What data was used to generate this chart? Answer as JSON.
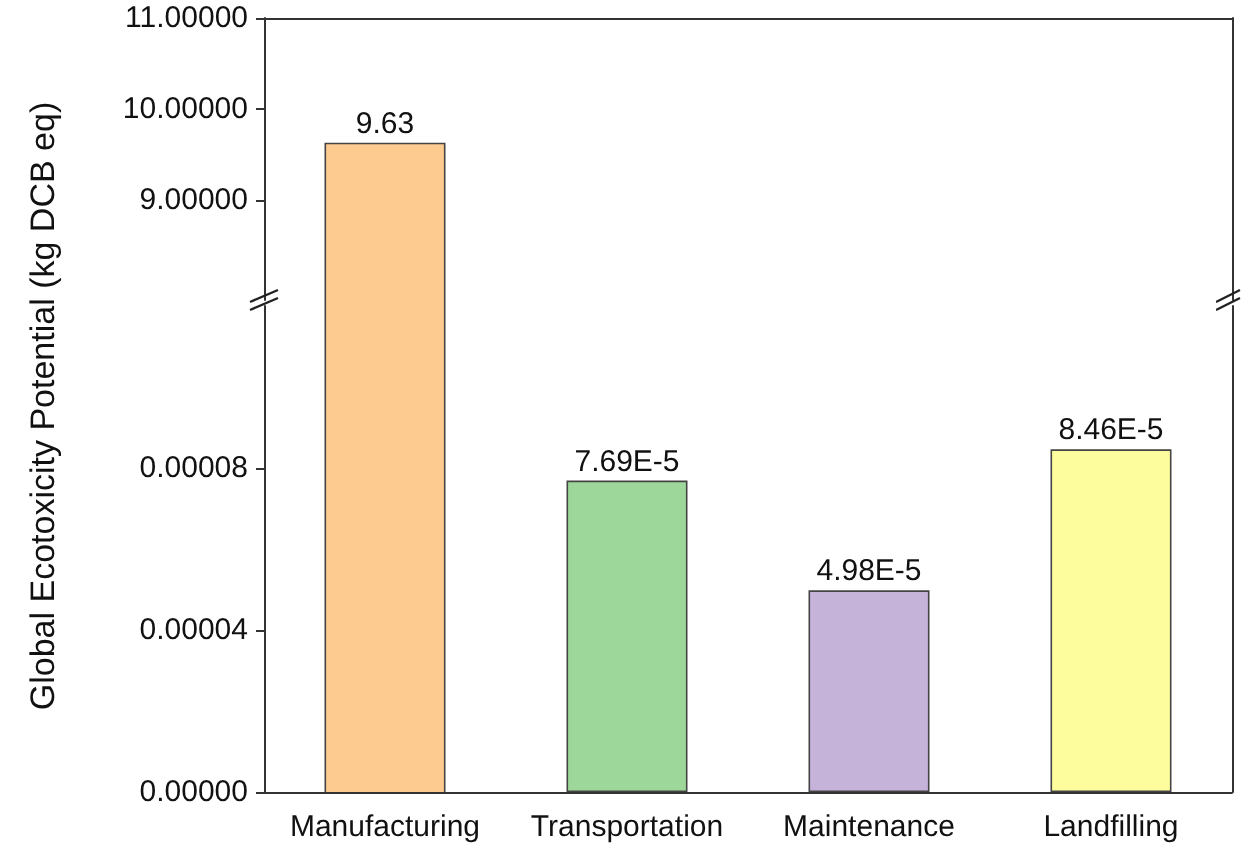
{
  "chart_data": [
    {
      "type": "bar",
      "ylabel": "Global Ecotoxicity Potential (kg DCB eq)",
      "values": [
        9.63,
        null,
        null,
        null
      ],
      "colors": [
        "#fdcb8f",
        "#9dd79a",
        "#c6b3d9",
        "#fefd9e"
      ],
      "value_labels": [
        "9.63",
        null,
        null,
        null
      ],
      "ylim": [
        7.9,
        11
      ],
      "yticks": [
        {
          "value": 9,
          "label": "9.00000"
        },
        {
          "value": 10,
          "label": "10.00000"
        },
        {
          "value": 11,
          "label": "11.00000"
        }
      ],
      "tick_labels": "y"
    },
    {
      "type": "bar",
      "categories": [
        "Manufacturing",
        "Transportation",
        "Maintenance",
        "Landfilling"
      ],
      "values": [
        null,
        7.69e-05,
        4.98e-05,
        8.46e-05
      ],
      "colors": [
        "#fdcb8f",
        "#9dd79a",
        "#c6b3d9",
        "#fefd9e"
      ],
      "value_labels": [
        null,
        "7.69E-5",
        "4.98E-5",
        "8.46E-5"
      ],
      "ylim": [
        0,
        0.00012
      ],
      "yticks": [
        {
          "value": 0,
          "label": "0.00000"
        },
        {
          "value": 4e-05,
          "label": "0.00004"
        },
        {
          "value": 8e-05,
          "label": "0.00008"
        }
      ]
    }
  ]
}
